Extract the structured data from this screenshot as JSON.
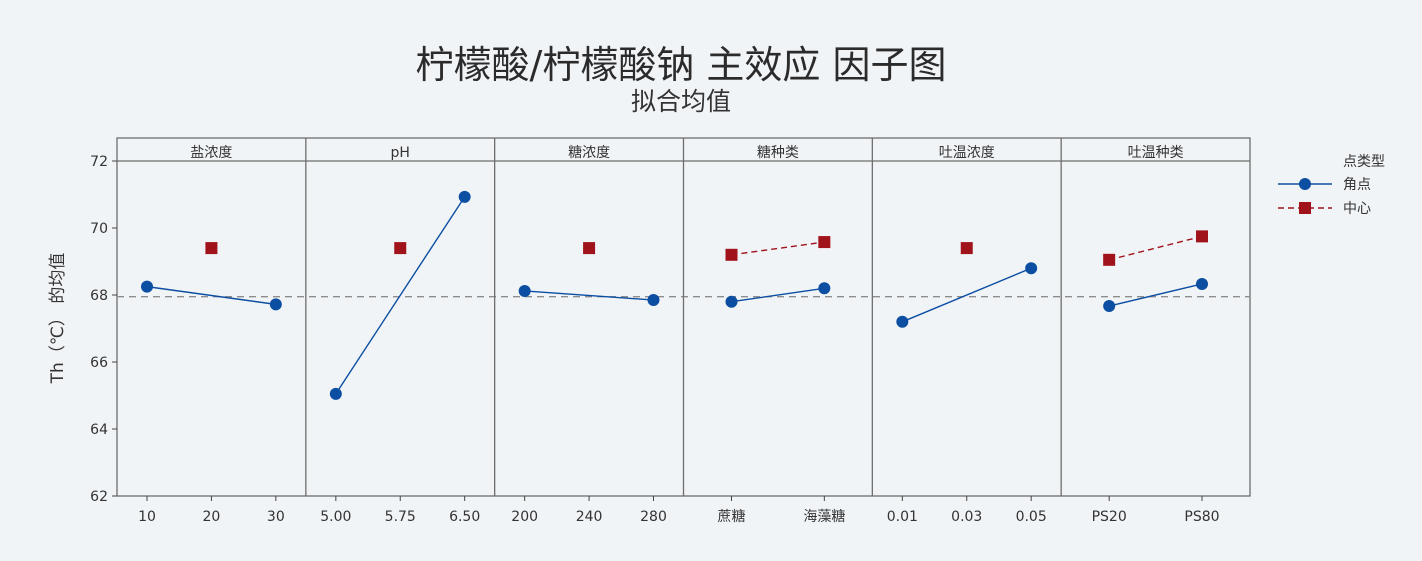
{
  "chart_data": {
    "type": "line",
    "title": "柠檬酸/柠檬酸钠 主效应 因子图",
    "subtitle": "拟合均值",
    "ylabel": "Th（℃） 的均值",
    "ylim": [
      62,
      72
    ],
    "yticks": [
      "62",
      "64",
      "66",
      "68",
      "70",
      "72"
    ],
    "reference_line": 67.95,
    "legend": {
      "title": "点类型",
      "items": [
        {
          "name": "角点",
          "color": "#0b4ea2",
          "marker": "circle"
        },
        {
          "name": "中心",
          "color": "#a0131b",
          "marker": "square"
        }
      ]
    },
    "panels": [
      {
        "factor": "盐浓度",
        "levels": [
          "10",
          "20",
          "30"
        ],
        "corner": [
          {
            "level": 0,
            "value": 68.25
          },
          {
            "level": 2,
            "value": 67.72
          }
        ],
        "center": [
          {
            "level": 1,
            "value": 69.4
          }
        ]
      },
      {
        "factor": "pH",
        "levels": [
          "5.00",
          "5.75",
          "6.50"
        ],
        "corner": [
          {
            "level": 0,
            "value": 65.05
          },
          {
            "level": 2,
            "value": 70.93
          }
        ],
        "center": [
          {
            "level": 1,
            "value": 69.4
          }
        ]
      },
      {
        "factor": "糖浓度",
        "levels": [
          "200",
          "240",
          "280"
        ],
        "corner": [
          {
            "level": 0,
            "value": 68.12
          },
          {
            "level": 2,
            "value": 67.85
          }
        ],
        "center": [
          {
            "level": 1,
            "value": 69.4
          }
        ]
      },
      {
        "factor": "糖种类",
        "levels": [
          "蔗糖",
          "海藻糖"
        ],
        "corner": [
          {
            "level": 0,
            "value": 67.8
          },
          {
            "level": 1,
            "value": 68.2
          }
        ],
        "center": [
          {
            "level": 0,
            "value": 69.2
          },
          {
            "level": 1,
            "value": 69.58
          }
        ]
      },
      {
        "factor": "吐温浓度",
        "levels": [
          "0.01",
          "0.03",
          "0.05"
        ],
        "corner": [
          {
            "level": 0,
            "value": 67.2
          },
          {
            "level": 2,
            "value": 68.8
          }
        ],
        "center": [
          {
            "level": 1,
            "value": 69.4
          }
        ]
      },
      {
        "factor": "吐温种类",
        "levels": [
          "PS20",
          "PS80"
        ],
        "corner": [
          {
            "level": 0,
            "value": 67.67
          },
          {
            "level": 1,
            "value": 68.33
          }
        ],
        "center": [
          {
            "level": 0,
            "value": 69.05
          },
          {
            "level": 1,
            "value": 69.75
          }
        ]
      }
    ]
  }
}
